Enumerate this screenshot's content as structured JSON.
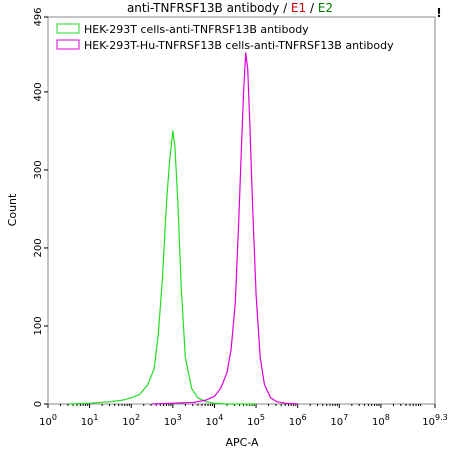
{
  "chart_data": {
    "type": "line",
    "title_parts": [
      {
        "text": "anti-TNFRSF13B antibody",
        "color": "#000000"
      },
      {
        "text": " / ",
        "color": "#000000"
      },
      {
        "text": "E1",
        "color": "#cc0000"
      },
      {
        "text": " / ",
        "color": "#000000"
      },
      {
        "text": "E2",
        "color": "#008000"
      }
    ],
    "corner_mark": "!",
    "xlabel": "APC-A",
    "ylabel": "Count",
    "x_scale": "log",
    "xlim_exp": [
      0,
      9.3
    ],
    "ylim": [
      0,
      496
    ],
    "x_ticks": [
      {
        "exp": 0,
        "base": "10",
        "sup": "0"
      },
      {
        "exp": 1,
        "base": "10",
        "sup": "1"
      },
      {
        "exp": 2,
        "base": "10",
        "sup": "2"
      },
      {
        "exp": 3,
        "base": "10",
        "sup": "3"
      },
      {
        "exp": 4,
        "base": "10",
        "sup": "4"
      },
      {
        "exp": 5,
        "base": "10",
        "sup": "5"
      },
      {
        "exp": 6,
        "base": "10",
        "sup": "6"
      },
      {
        "exp": 7,
        "base": "10",
        "sup": "7"
      },
      {
        "exp": 8,
        "base": "10",
        "sup": "8"
      },
      {
        "exp": 9.3,
        "base": "10",
        "sup": "9.3"
      }
    ],
    "y_ticks": [
      0,
      100,
      200,
      300,
      400,
      496
    ],
    "legend_position": "top-left",
    "series": [
      {
        "name": "HEK-293T cells-anti-TNFRSF13B antibody",
        "color": "#22dd22",
        "log10_x": [
          0.5,
          1.0,
          1.5,
          1.8,
          2.0,
          2.2,
          2.4,
          2.55,
          2.65,
          2.75,
          2.85,
          2.92,
          2.97,
          3.0,
          3.05,
          3.12,
          3.2,
          3.3,
          3.45,
          3.6,
          3.8,
          4.0,
          4.3,
          5.0
        ],
        "values": [
          0,
          1,
          3,
          5,
          8,
          12,
          25,
          45,
          90,
          160,
          260,
          310,
          335,
          350,
          330,
          260,
          150,
          60,
          20,
          8,
          3,
          1,
          0,
          0
        ]
      },
      {
        "name": "HEK-293T-Hu-TNFRSF13B cells-anti-TNFRSF13B antibody",
        "color": "#dd00dd",
        "log10_x": [
          2.5,
          3.0,
          3.5,
          3.8,
          4.0,
          4.15,
          4.3,
          4.4,
          4.5,
          4.58,
          4.65,
          4.7,
          4.75,
          4.8,
          4.85,
          4.92,
          5.0,
          5.1,
          5.2,
          5.35,
          5.5,
          5.7,
          6.0
        ],
        "values": [
          0,
          1,
          2,
          5,
          10,
          20,
          40,
          70,
          130,
          230,
          330,
          400,
          450,
          430,
          360,
          250,
          140,
          60,
          25,
          8,
          3,
          1,
          0
        ]
      }
    ]
  }
}
